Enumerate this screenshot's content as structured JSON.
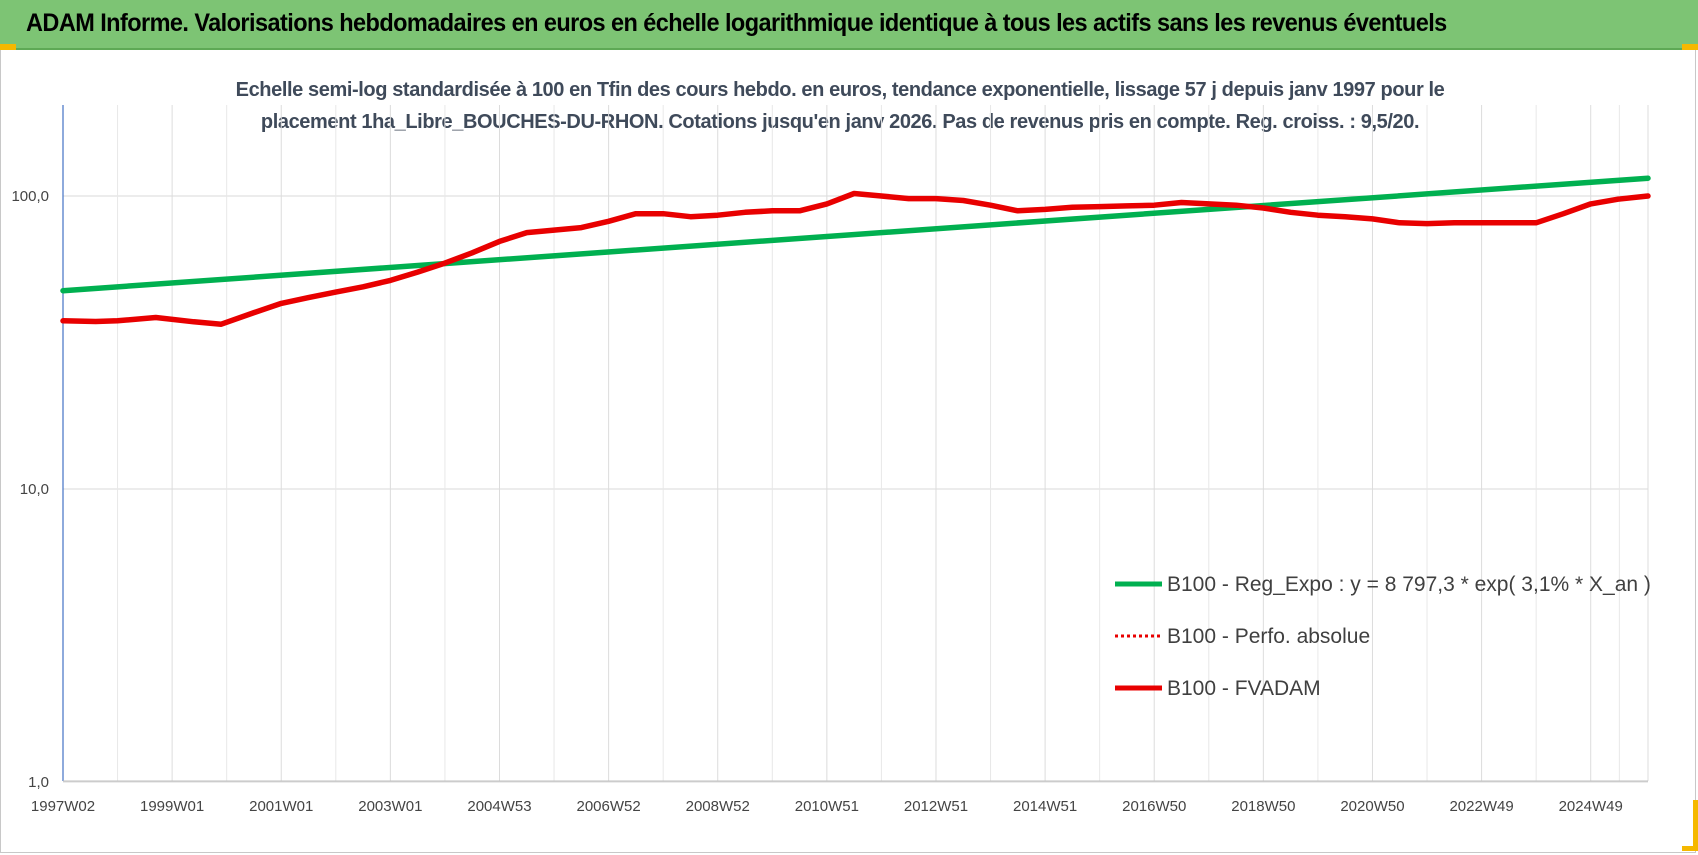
{
  "banner": {
    "title": "ADAM Informe. Valorisations hebdomadaires en euros en échelle logarithmique identique à tous les actifs sans les revenus éventuels"
  },
  "colors": {
    "banner_bg": "#7dc474",
    "accent_corner": "#f5b800",
    "reg_expo": "#00b050",
    "fvadam": "#e80000",
    "perfo": "#e80000"
  },
  "chart_data": {
    "type": "line",
    "title_lines": [
      "Echelle semi-log standardisée à 100 en Tfin des cours hebdo. en euros, tendance exponentielle, lissage 57 j depuis janv 1997 pour le",
      "placement 1ha_Libre_BOUCHES-DU-RHON. Cotations jusqu'en janv 2026. Pas de revenus pris en compte. Reg. croiss. : 9,5/20."
    ],
    "y_scale": "log",
    "ylim": [
      1,
      200
    ],
    "y_ticks": [
      {
        "value": 100,
        "label": "100,0"
      },
      {
        "value": 10,
        "label": "10,0"
      },
      {
        "value": 1,
        "label": "1,0"
      }
    ],
    "xlim": [
      1997.0,
      2026.05
    ],
    "x_ticks": [
      {
        "value": 1997.0,
        "label": "1997W02"
      },
      {
        "value": 1999.0,
        "label": "1999W01"
      },
      {
        "value": 2001.0,
        "label": "2001W01"
      },
      {
        "value": 2003.0,
        "label": "2003W01"
      },
      {
        "value": 2005.0,
        "label": "2004W53"
      },
      {
        "value": 2007.0,
        "label": "2006W52"
      },
      {
        "value": 2009.0,
        "label": "2008W52"
      },
      {
        "value": 2011.0,
        "label": "2010W51"
      },
      {
        "value": 2013.0,
        "label": "2012W51"
      },
      {
        "value": 2015.0,
        "label": "2014W51"
      },
      {
        "value": 2017.0,
        "label": "2016W50"
      },
      {
        "value": 2019.0,
        "label": "2018W50"
      },
      {
        "value": 2021.0,
        "label": "2020W50"
      },
      {
        "value": 2023.0,
        "label": "2022W49"
      },
      {
        "value": 2025.0,
        "label": "2024W49"
      }
    ],
    "grid": "vertical",
    "legend_position": "lower-right",
    "series": [
      {
        "name": "B100 - Reg_Expo : y = 8 797,3 * exp( 3,1% *  X_an )",
        "style": "solid",
        "points": [
          [
            1997.0,
            47.5
          ],
          [
            2026.05,
            115.0
          ]
        ]
      },
      {
        "name": "B100 - Perfo. absolue",
        "style": "dotted",
        "points": []
      },
      {
        "name": "B100 - FVADAM",
        "style": "solid-thick",
        "points": [
          [
            1997.0,
            37.5
          ],
          [
            1997.6,
            37.3
          ],
          [
            1998.0,
            37.5
          ],
          [
            1998.7,
            38.5
          ],
          [
            1999.4,
            37.2
          ],
          [
            1999.9,
            36.5
          ],
          [
            2000.5,
            40.0
          ],
          [
            2001.0,
            43.0
          ],
          [
            2001.5,
            45.0
          ],
          [
            2002.0,
            47.0
          ],
          [
            2002.5,
            49.0
          ],
          [
            2003.0,
            51.5
          ],
          [
            2003.5,
            55.0
          ],
          [
            2004.0,
            59.0
          ],
          [
            2004.5,
            64.0
          ],
          [
            2005.0,
            70.0
          ],
          [
            2005.5,
            75.0
          ],
          [
            2006.0,
            76.5
          ],
          [
            2006.5,
            78.0
          ],
          [
            2007.0,
            82.0
          ],
          [
            2007.5,
            87.0
          ],
          [
            2008.0,
            87.0
          ],
          [
            2008.5,
            85.0
          ],
          [
            2009.0,
            86.0
          ],
          [
            2009.5,
            88.0
          ],
          [
            2010.0,
            89.0
          ],
          [
            2010.5,
            89.0
          ],
          [
            2011.0,
            94.0
          ],
          [
            2011.5,
            102.0
          ],
          [
            2012.0,
            100.0
          ],
          [
            2012.5,
            98.0
          ],
          [
            2013.0,
            98.0
          ],
          [
            2013.5,
            96.5
          ],
          [
            2014.0,
            93.0
          ],
          [
            2014.5,
            89.0
          ],
          [
            2015.0,
            90.0
          ],
          [
            2015.5,
            91.5
          ],
          [
            2016.0,
            92.0
          ],
          [
            2016.5,
            92.5
          ],
          [
            2017.0,
            93.0
          ],
          [
            2017.5,
            95.0
          ],
          [
            2018.0,
            94.0
          ],
          [
            2018.5,
            93.0
          ],
          [
            2019.0,
            91.0
          ],
          [
            2019.5,
            88.0
          ],
          [
            2020.0,
            86.0
          ],
          [
            2020.5,
            85.0
          ],
          [
            2021.0,
            83.5
          ],
          [
            2021.5,
            81.0
          ],
          [
            2022.0,
            80.5
          ],
          [
            2022.5,
            81.0
          ],
          [
            2023.0,
            81.0
          ],
          [
            2023.5,
            81.0
          ],
          [
            2024.0,
            81.0
          ],
          [
            2024.5,
            87.0
          ],
          [
            2025.0,
            94.0
          ],
          [
            2025.5,
            97.5
          ],
          [
            2026.05,
            100.0
          ]
        ]
      }
    ]
  }
}
